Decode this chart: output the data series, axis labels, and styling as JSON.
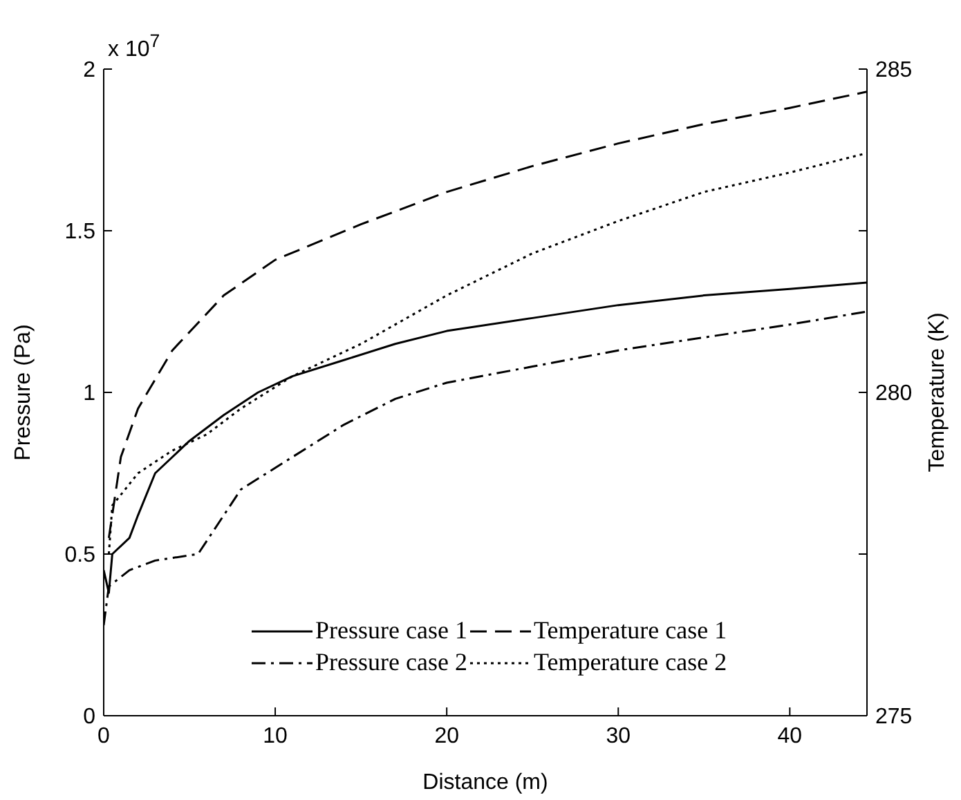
{
  "chart_data": {
    "type": "line",
    "xlabel": "Distance (m)",
    "ylabel": "Pressure (Pa)",
    "y2label": "Temperature (K)",
    "annotations": [
      "x 10$^{7}$"
    ],
    "xlim": [
      0,
      44.5
    ],
    "xticks": [
      0,
      10,
      20,
      30,
      40
    ],
    "ylim": [
      0,
      2
    ],
    "yticks": [
      0,
      0.5,
      1,
      1.5,
      2
    ],
    "y2lim": [
      275,
      285
    ],
    "y2ticks": [
      275,
      {
        "value": 277.5,
        "label": null
      },
      280,
      {
        "value": 282.5,
        "label": null
      },
      285
    ],
    "grid": false,
    "legend": "bottom right",
    "marker": "none",
    "series": [
      {
        "name": "Pressure case 1",
        "color": "#000000",
        "line_style": "solid",
        "x": [
          0,
          0.3,
          0.5,
          1.5,
          2,
          3,
          5,
          7,
          9,
          11,
          14,
          17,
          20,
          25,
          30,
          35,
          40,
          44.5
        ],
        "values": [
          0.45,
          0.38,
          0.5,
          0.55,
          0.62,
          0.75,
          0.85,
          0.93,
          1.0,
          1.05,
          1.1,
          1.15,
          1.19,
          1.23,
          1.27,
          1.3,
          1.32,
          1.34
        ]
      },
      {
        "name": "Temperature case 1",
        "color": "#000000",
        "line_style": "dashed",
        "axis": "y2",
        "x": [
          0.3,
          1,
          2,
          4,
          7,
          10,
          15,
          20,
          25,
          30,
          35,
          40,
          44.5
        ],
        "values": [
          277.75,
          279,
          279.75,
          280.65,
          281.5,
          282.05,
          282.6,
          283.1,
          283.5,
          283.85,
          284.15,
          284.4,
          284.65
        ]
      },
      {
        "name": "Pressure case 2",
        "color": "#000000",
        "line_style": "dashdot",
        "x": [
          0,
          0.3,
          1.5,
          3,
          5.5,
          6.5,
          8,
          11,
          14,
          17,
          20,
          25,
          30,
          35,
          40,
          44.5
        ],
        "values": [
          0.28,
          0.4,
          0.45,
          0.48,
          0.5,
          0.58,
          0.7,
          0.8,
          0.9,
          0.98,
          1.03,
          1.08,
          1.13,
          1.17,
          1.21,
          1.25
        ]
      },
      {
        "name": "Temperature case 2",
        "color": "#000000",
        "line_style": "dotted",
        "axis": "y2",
        "x": [
          0.3,
          0.5,
          2,
          4,
          6,
          8,
          11,
          15,
          20,
          25,
          30,
          35,
          40,
          44.5
        ],
        "values": [
          277.5,
          278.25,
          278.75,
          279.1,
          279.35,
          279.75,
          280.25,
          280.75,
          281.5,
          282.15,
          282.65,
          283.1,
          283.4,
          283.7
        ]
      }
    ]
  }
}
